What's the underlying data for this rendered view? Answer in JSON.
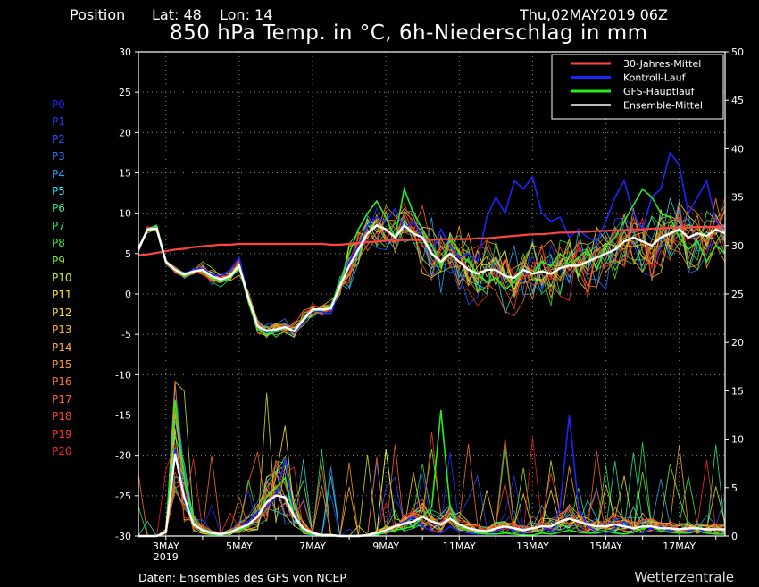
{
  "header": {
    "position_label": "Position",
    "lat_label": "Lat: 48",
    "lon_label": "Lon: 14",
    "run_time": "Thu,02MAY2019 06Z",
    "title": "850 hPa Temp. in °C, 6h-Niederschlag in mm"
  },
  "members": [
    {
      "label": "P0",
      "color": "#2222ff"
    },
    {
      "label": "P1",
      "color": "#2233ff"
    },
    {
      "label": "P2",
      "color": "#2255ff"
    },
    {
      "label": "P3",
      "color": "#2277ff"
    },
    {
      "label": "P4",
      "color": "#22aaff"
    },
    {
      "label": "P5",
      "color": "#22ddee"
    },
    {
      "label": "P6",
      "color": "#22ee99"
    },
    {
      "label": "P7",
      "color": "#22ee55"
    },
    {
      "label": "P8",
      "color": "#33ee33"
    },
    {
      "label": "P9",
      "color": "#88ee22"
    },
    {
      "label": "P10",
      "color": "#ccee22"
    },
    {
      "label": "P11",
      "color": "#ffee22"
    },
    {
      "label": "P12",
      "color": "#ffdd22"
    },
    {
      "label": "P13",
      "color": "#ffbb22"
    },
    {
      "label": "P14",
      "color": "#ffaa22"
    },
    {
      "label": "P15",
      "color": "#ff9922"
    },
    {
      "label": "P16",
      "color": "#ff7722"
    },
    {
      "label": "P17",
      "color": "#ff6622"
    },
    {
      "label": "P18",
      "color": "#ff4422"
    },
    {
      "label": "P19",
      "color": "#ff3322"
    },
    {
      "label": "P20",
      "color": "#ee2222"
    }
  ],
  "footer": {
    "credit": "Daten: Ensembles des GFS von NCEP",
    "brand": "Wetterzentrale"
  },
  "chart_data": {
    "type": "line",
    "x_tick_labels": [
      "3MAY",
      "5MAY",
      "7MAY",
      "9MAY",
      "11MAY",
      "13MAY",
      "15MAY",
      "17MAY"
    ],
    "x_year_label": "2019",
    "x_range_days": [
      2.25,
      18.25
    ],
    "y_left": {
      "range": [
        -30,
        30
      ],
      "ticks": [
        30,
        25,
        20,
        15,
        10,
        5,
        0,
        -5,
        -10,
        -15,
        -20,
        -25,
        -30
      ]
    },
    "y_right": {
      "range": [
        0,
        50
      ],
      "ticks": [
        50,
        45,
        40,
        35,
        30,
        25,
        20,
        15,
        10,
        5,
        0
      ]
    },
    "grid": true,
    "legend": {
      "placement": "top-right",
      "entries": [
        {
          "name": "30-Jahres-Mittel",
          "color": "#ff4444"
        },
        {
          "name": "Kontroll-Lauf",
          "color": "#2222ff"
        },
        {
          "name": "GFS-Hauptlauf",
          "color": "#22ee22"
        },
        {
          "name": "Ensemble-Mittel",
          "color": "#bbbbbb"
        }
      ]
    },
    "temp_x_days": [
      2.25,
      2.5,
      2.75,
      3.0,
      3.25,
      3.5,
      3.75,
      4.0,
      4.25,
      4.5,
      4.75,
      5.0,
      5.25,
      5.5,
      5.75,
      6.0,
      6.25,
      6.5,
      6.75,
      7.0,
      7.25,
      7.5,
      7.75,
      8.0,
      8.25,
      8.5,
      8.75,
      9.0,
      9.25,
      9.5,
      9.75,
      10.0,
      10.25,
      10.5,
      10.75,
      11.0,
      11.25,
      11.5,
      11.75,
      12.0,
      12.25,
      12.5,
      12.75,
      13.0,
      13.25,
      13.5,
      13.75,
      14.0,
      14.25,
      14.5,
      14.75,
      15.0,
      15.25,
      15.5,
      15.75,
      16.0,
      16.25,
      16.5,
      16.75,
      17.0,
      17.25,
      17.5,
      17.75,
      18.0,
      18.25
    ],
    "climatology_30y_mean": [
      4.8,
      4.9,
      5.1,
      5.3,
      5.5,
      5.6,
      5.8,
      5.9,
      6.0,
      6.1,
      6.1,
      6.2,
      6.2,
      6.2,
      6.2,
      6.2,
      6.2,
      6.2,
      6.2,
      6.2,
      6.2,
      6.1,
      6.1,
      6.2,
      6.3,
      6.4,
      6.5,
      6.6,
      6.6,
      6.7,
      6.7,
      6.7,
      6.7,
      6.8,
      6.8,
      6.8,
      6.8,
      6.9,
      6.9,
      7.0,
      7.1,
      7.2,
      7.3,
      7.4,
      7.4,
      7.5,
      7.6,
      7.6,
      7.7,
      7.7,
      7.8,
      7.8,
      7.9,
      7.9,
      8.0,
      8.0,
      8.1,
      8.1,
      8.2,
      8.2,
      8.2,
      8.3,
      8.3,
      8.3,
      8.4
    ],
    "control_run": [
      5.5,
      8.0,
      8.2,
      4.0,
      3.0,
      2.5,
      3.0,
      3.2,
      2.4,
      2.2,
      3.0,
      4.5,
      -0.5,
      -4.0,
      -4.8,
      -4.5,
      -4.0,
      -4.8,
      -3.5,
      -2.0,
      -2.2,
      -2.5,
      1.0,
      4.0,
      6.0,
      8.5,
      9.5,
      9.0,
      10.5,
      8.0,
      9.0,
      7.0,
      5.0,
      8.0,
      6.0,
      4.5,
      5.0,
      4.0,
      9.5,
      12.0,
      10.0,
      14.0,
      13.0,
      14.5,
      10.0,
      9.0,
      9.5,
      7.0,
      8.0,
      7.0,
      6.5,
      9.0,
      12.0,
      14.0,
      10.0,
      8.0,
      12.0,
      13.0,
      17.5,
      16.0,
      10.0,
      12.0,
      14.0,
      9.0,
      8.0
    ],
    "gfs_main_run": [
      5.5,
      8.0,
      8.5,
      4.0,
      3.0,
      2.2,
      2.8,
      3.0,
      2.0,
      1.5,
      2.0,
      3.2,
      -1.0,
      -4.5,
      -5.0,
      -4.5,
      -4.2,
      -4.6,
      -3.0,
      -2.0,
      -2.0,
      -1.5,
      1.5,
      5.0,
      8.0,
      10.0,
      11.5,
      9.5,
      7.0,
      13.0,
      10.0,
      8.0,
      6.0,
      3.5,
      7.0,
      5.0,
      4.0,
      2.5,
      1.5,
      2.0,
      0.5,
      1.5,
      3.0,
      2.5,
      4.0,
      3.5,
      5.0,
      3.5,
      4.5,
      5.5,
      3.0,
      6.0,
      7.0,
      9.0,
      11.0,
      13.0,
      12.0,
      10.0,
      9.5,
      7.0,
      5.5,
      6.5,
      4.0,
      6.0,
      5.0
    ],
    "ensemble_mean": [
      5.5,
      8.0,
      8.1,
      4.0,
      3.0,
      2.4,
      2.8,
      3.0,
      2.2,
      1.8,
      2.2,
      3.5,
      -0.5,
      -4.0,
      -4.6,
      -4.4,
      -4.1,
      -4.6,
      -3.2,
      -1.9,
      -1.9,
      -1.8,
      1.0,
      3.5,
      5.5,
      7.5,
      8.5,
      8.0,
      7.0,
      8.5,
      7.5,
      7.0,
      5.0,
      4.0,
      5.0,
      4.0,
      3.0,
      2.5,
      3.0,
      3.0,
      2.2,
      2.0,
      3.0,
      2.5,
      2.8,
      2.5,
      3.2,
      3.5,
      3.5,
      4.0,
      4.5,
      5.0,
      5.5,
      6.5,
      7.0,
      6.5,
      6.0,
      7.0,
      7.5,
      8.0,
      7.0,
      7.5,
      7.2,
      8.0,
      7.5
    ],
    "precip_x_days": [
      2.25,
      2.5,
      2.75,
      3.0,
      3.25,
      3.5,
      3.75,
      4.0,
      4.25,
      4.5,
      4.75,
      5.0,
      5.25,
      5.5,
      5.75,
      6.0,
      6.25,
      6.5,
      6.75,
      7.0,
      7.25,
      7.5,
      7.75,
      8.0,
      8.25,
      8.5,
      8.75,
      9.0,
      9.25,
      9.5,
      9.75,
      10.0,
      10.25,
      10.5,
      10.75,
      11.0,
      11.25,
      11.5,
      11.75,
      12.0,
      12.25,
      12.5,
      12.75,
      13.0,
      13.25,
      13.5,
      13.75,
      14.0,
      14.25,
      14.5,
      14.75,
      15.0,
      15.25,
      15.5,
      15.75,
      16.0,
      16.25,
      16.5,
      16.75,
      17.0,
      17.25,
      17.5,
      17.75,
      18.0,
      18.25
    ],
    "precip_control_run": [
      0,
      0,
      0,
      0.3,
      9.0,
      4.5,
      1.5,
      0.5,
      0.2,
      0.1,
      0.3,
      0.8,
      1.5,
      2.5,
      3.0,
      4.0,
      8.0,
      2.0,
      0.5,
      0.2,
      0,
      0,
      0,
      0,
      0,
      0,
      0.2,
      0.5,
      1.0,
      1.5,
      2.0,
      1.0,
      0.5,
      0.3,
      1.0,
      0.5,
      0.3,
      0.2,
      0.2,
      0.5,
      1.0,
      0.5,
      0.3,
      0.8,
      1.0,
      0.5,
      3.0,
      12.5,
      3.0,
      1.0,
      0.5,
      0.3,
      0.8,
      1.5,
      0.5,
      0.3,
      0.8,
      1.0,
      0.5,
      0.3,
      0.5,
      0.8,
      0.3,
      0.2,
      0.2
    ],
    "precip_gfs_main_run": [
      0,
      0,
      0,
      0.5,
      14.0,
      6.0,
      1.5,
      0.5,
      0.2,
      0.1,
      0.3,
      0.6,
      1.0,
      2.0,
      4.0,
      5.0,
      6.0,
      2.0,
      0.5,
      0.2,
      0,
      0,
      0,
      0,
      0,
      0,
      0.1,
      0.4,
      0.6,
      0.8,
      1.0,
      2.0,
      3.0,
      13.0,
      3.0,
      1.0,
      0.5,
      0.3,
      0.2,
      0.2,
      0.3,
      0.2,
      0.1,
      0.1,
      0.3,
      0.2,
      0.4,
      0.6,
      0.4,
      0.3,
      0.3,
      0.5,
      0.3,
      0.2,
      0.4,
      0.8,
      1.0,
      0.5,
      0.4,
      0.3,
      0.3,
      0.5,
      0.3,
      0.2,
      0.2
    ],
    "precip_ensemble_mean": [
      0,
      0,
      0,
      0.4,
      8.5,
      4.0,
      1.2,
      0.6,
      0.3,
      0.2,
      0.4,
      0.8,
      1.2,
      2.0,
      3.5,
      4.2,
      4.0,
      2.0,
      0.8,
      0.3,
      0.1,
      0.1,
      0,
      0,
      0,
      0.1,
      0.3,
      0.6,
      1.0,
      1.3,
      1.5,
      2.0,
      1.5,
      1.2,
      1.8,
      1.2,
      0.8,
      0.6,
      0.5,
      0.8,
      1.0,
      0.8,
      0.6,
      0.8,
      1.0,
      1.0,
      1.5,
      1.8,
      1.5,
      1.2,
      1.0,
      1.0,
      1.2,
      1.0,
      0.8,
      1.0,
      1.0,
      0.8,
      0.8,
      0.7,
      0.8,
      0.8,
      0.7,
      0.7,
      0.7
    ]
  }
}
